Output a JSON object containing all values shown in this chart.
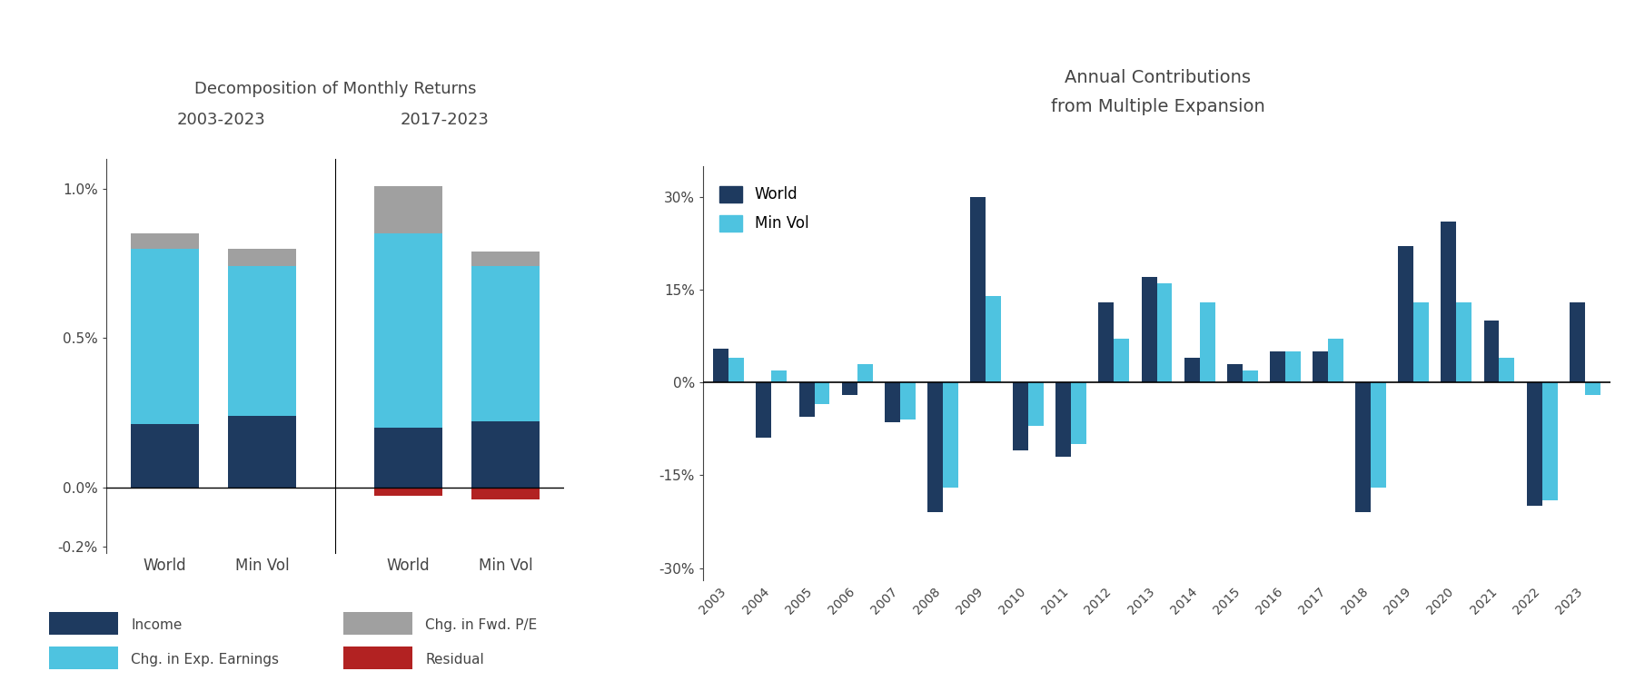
{
  "left_title_line1": "Decomposition of Monthly Returns",
  "left_title_line2a": "2003-2023",
  "left_title_line2b": "2017-2023",
  "right_title_line1": "Annual Contributions",
  "right_title_line2": "from Multiple Expansion",
  "bar_categories_left": [
    "World",
    "Min Vol",
    "World",
    "Min Vol"
  ],
  "income": [
    0.0021,
    0.0024,
    0.002,
    0.0022
  ],
  "chg_exp_earnings": [
    0.0059,
    0.005,
    0.0065,
    0.0052
  ],
  "chg_fwd_pe": [
    0.0005,
    0.0006,
    0.0016,
    0.0005
  ],
  "residual": [
    -5e-05,
    0.0,
    -0.0003,
    -0.0004
  ],
  "colors": {
    "income": "#1e3a5f",
    "chg_exp_earnings": "#4ec3e0",
    "chg_fwd_pe": "#a0a0a0",
    "residual": "#b22222"
  },
  "ylim_left": [
    -0.0022,
    0.011
  ],
  "yticks_left": [
    -0.002,
    0.0,
    0.005,
    0.01
  ],
  "ytick_labels_left": [
    "-0.2%",
    "0.0%",
    "0.5%",
    "1.0%"
  ],
  "years": [
    2003,
    2004,
    2005,
    2006,
    2007,
    2008,
    2009,
    2010,
    2011,
    2012,
    2013,
    2014,
    2015,
    2016,
    2017,
    2018,
    2019,
    2020,
    2021,
    2022,
    2023
  ],
  "world_annual": [
    0.055,
    -0.09,
    -0.055,
    -0.02,
    -0.065,
    -0.21,
    0.3,
    -0.11,
    -0.12,
    0.13,
    0.17,
    0.04,
    0.03,
    0.05,
    0.05,
    -0.21,
    0.22,
    0.26,
    0.1,
    -0.2,
    0.13
  ],
  "minvol_annual": [
    0.04,
    0.02,
    -0.035,
    0.03,
    -0.06,
    -0.17,
    0.14,
    -0.07,
    -0.1,
    0.07,
    0.16,
    0.13,
    0.02,
    0.05,
    0.07,
    -0.17,
    0.13,
    0.13,
    0.04,
    -0.19,
    -0.02
  ],
  "ylim_right": [
    -0.32,
    0.35
  ],
  "yticks_right": [
    -0.3,
    -0.15,
    0.0,
    0.15,
    0.3
  ],
  "ytick_labels_right": [
    "-30%",
    "-15%",
    "0%",
    "15%",
    "30%"
  ],
  "world_color": "#1e3a5f",
  "minvol_color": "#4ec3e0",
  "background_color": "#ffffff"
}
